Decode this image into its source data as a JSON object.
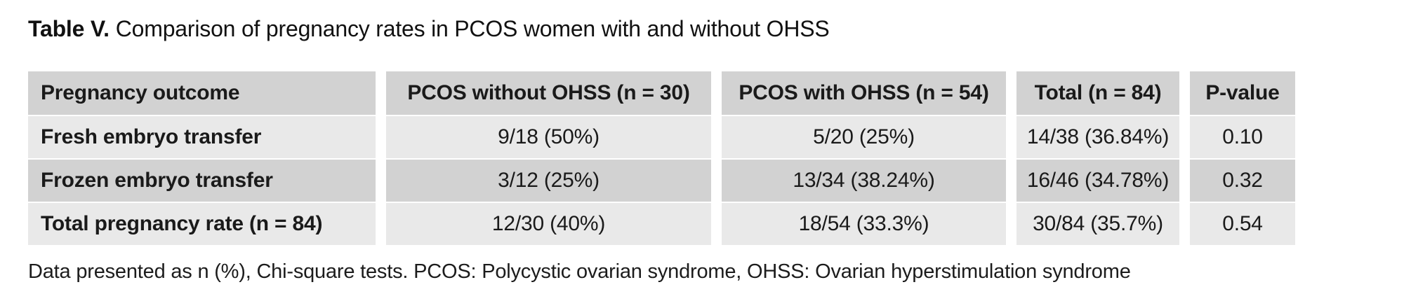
{
  "title": {
    "label": "Table V.",
    "text": "Comparison of pregnancy rates in PCOS women with and without OHSS"
  },
  "table": {
    "columns": [
      "Pregnancy outcome",
      "PCOS without OHSS (n = 30)",
      "PCOS with OHSS (n = 54)",
      "Total (n = 84)",
      "P-value"
    ],
    "rows": [
      {
        "cells": [
          "Fresh embryo transfer",
          "9/18 (50%)",
          "5/20 (25%)",
          "14/38 (36.84%)",
          "0.10"
        ]
      },
      {
        "cells": [
          "Frozen embryo transfer",
          "3/12 (25%)",
          "13/34 (38.24%)",
          "16/46 (34.78%)",
          "0.32"
        ]
      },
      {
        "cells": [
          "Total pregnancy rate (n = 84)",
          "12/30 (40%)",
          "18/54 (33.3%)",
          "30/84 (35.7%)",
          "0.54"
        ]
      }
    ],
    "colors": {
      "header_bg": "#d2d2d2",
      "row_light": "#e9e9e9",
      "row_dark": "#d2d2d2",
      "text": "#1a1a1a",
      "background": "#ffffff"
    }
  },
  "footnote": "Data presented as n (%), Chi-square tests. PCOS: Polycystic ovarian syndrome, OHSS: Ovarian hyperstimulation syndrome"
}
